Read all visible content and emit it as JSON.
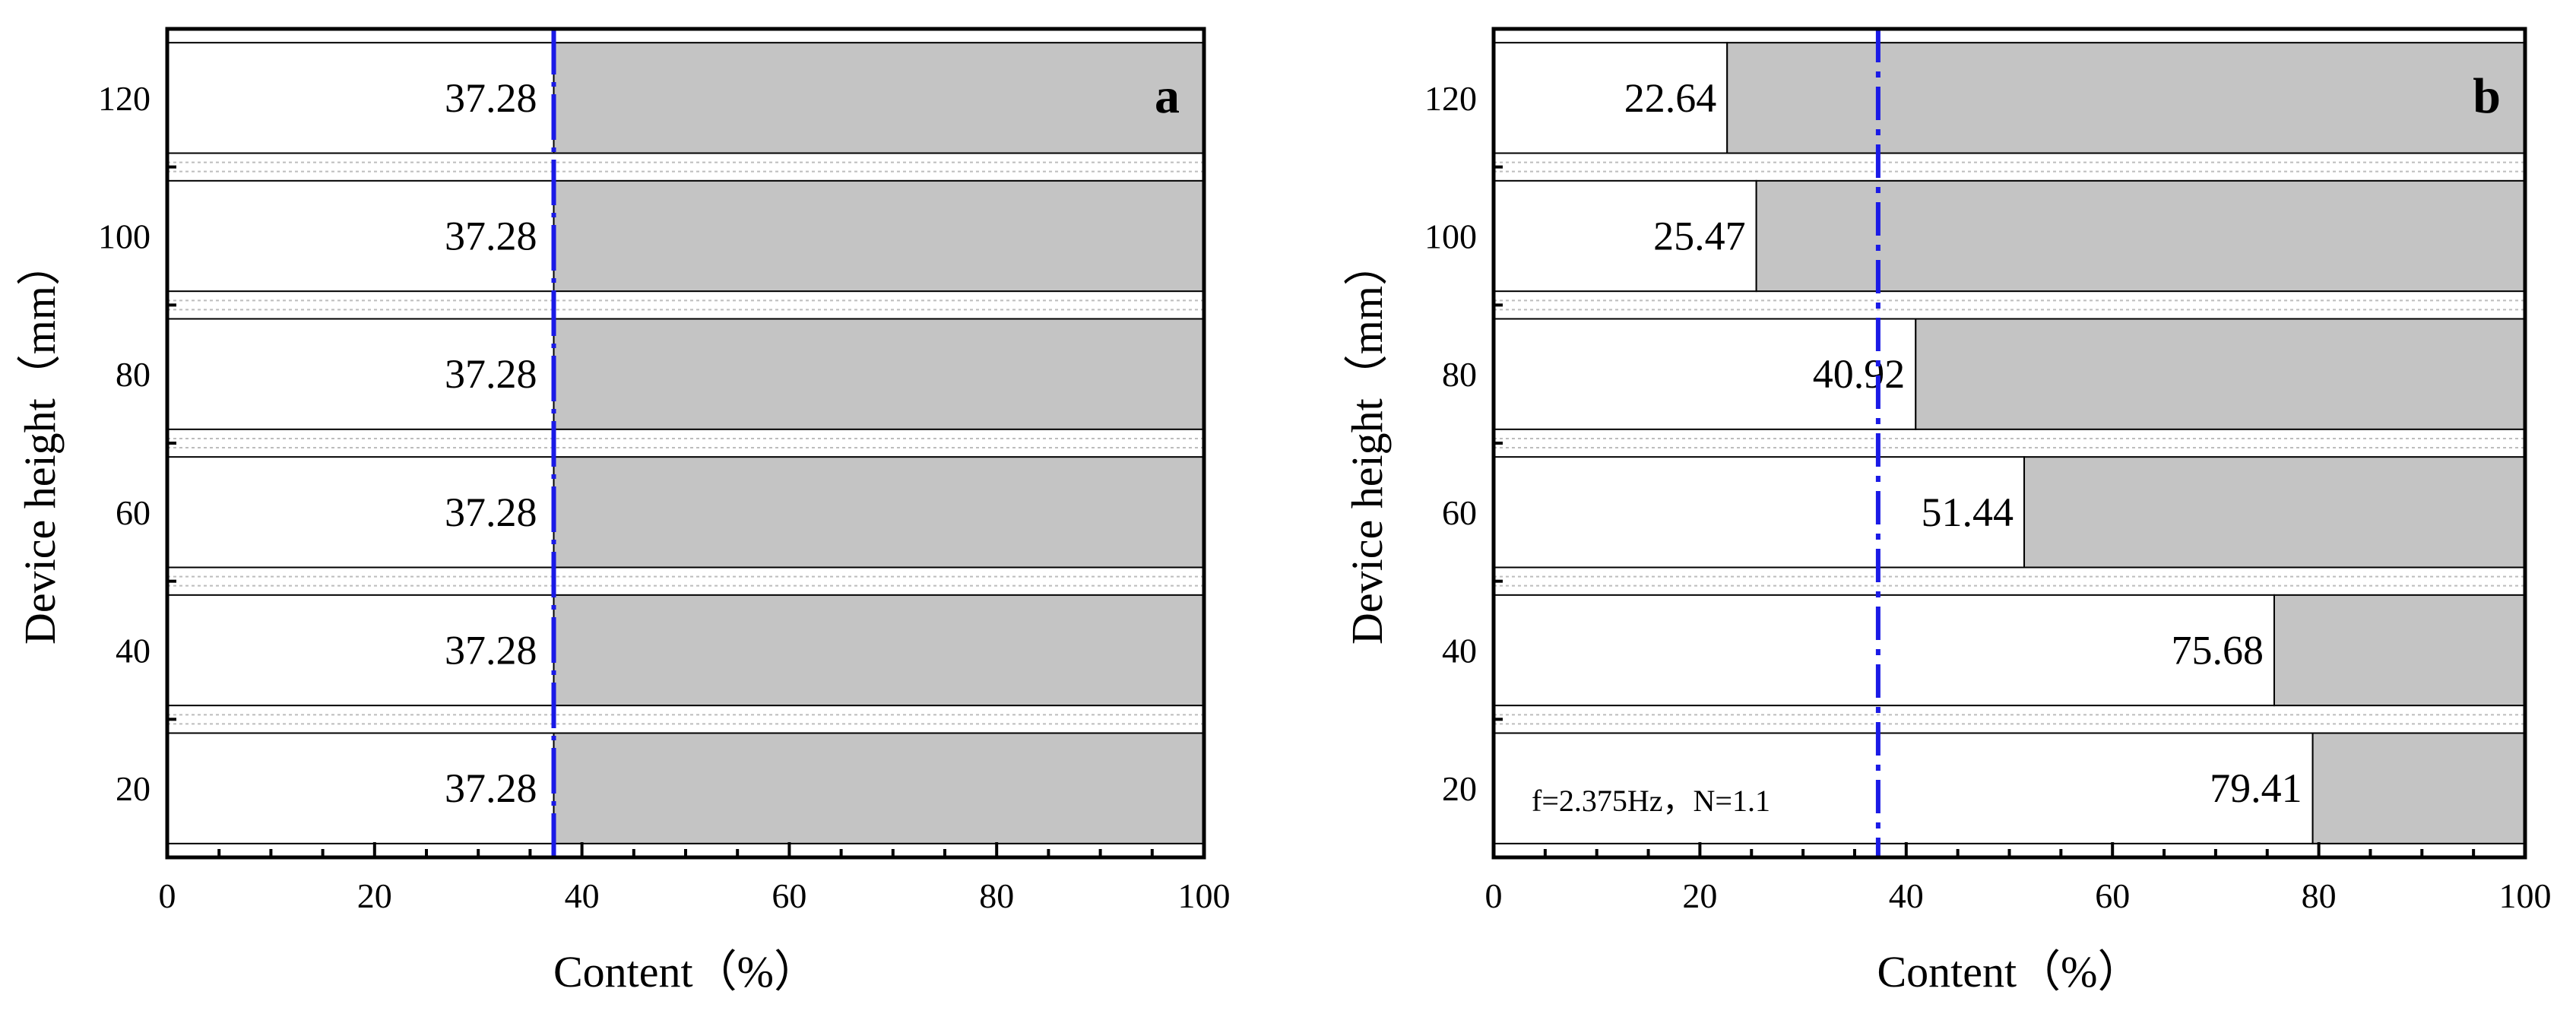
{
  "chart_data": [
    {
      "type": "bar",
      "orientation": "horizontal-stacked",
      "panel_label": "a",
      "xlabel": "Content（%）",
      "ylabel": "Device height（mm）",
      "xlim": [
        0,
        100
      ],
      "xticks": [
        0,
        20,
        40,
        60,
        80,
        100
      ],
      "categories": [
        "120",
        "100",
        "80",
        "60",
        "40",
        "20"
      ],
      "values": [
        37.28,
        37.28,
        37.28,
        37.28,
        37.28,
        37.28
      ],
      "value_labels": [
        "37.28",
        "37.28",
        "37.28",
        "37.28",
        "37.28",
        "37.28"
      ],
      "reference_line": 37.28,
      "annotation": "",
      "colors": {
        "left": "#ffffff",
        "right": "#c4c4c4",
        "reference": "#1a1ae6"
      }
    },
    {
      "type": "bar",
      "orientation": "horizontal-stacked",
      "panel_label": "b",
      "xlabel": "Content（%）",
      "ylabel": "Device height（mm）",
      "xlim": [
        0,
        100
      ],
      "xticks": [
        0,
        20,
        40,
        60,
        80,
        100
      ],
      "categories": [
        "120",
        "100",
        "80",
        "60",
        "40",
        "20"
      ],
      "values": [
        22.64,
        25.47,
        40.92,
        51.44,
        75.68,
        79.41
      ],
      "value_labels": [
        "22.64",
        "25.47",
        "40.92",
        "51.44",
        "75.68",
        "79.41"
      ],
      "reference_line": 37.28,
      "annotation": "f=2.375Hz，N=1.1",
      "colors": {
        "left": "#ffffff",
        "right": "#c4c4c4",
        "reference": "#1a1ae6"
      }
    }
  ]
}
